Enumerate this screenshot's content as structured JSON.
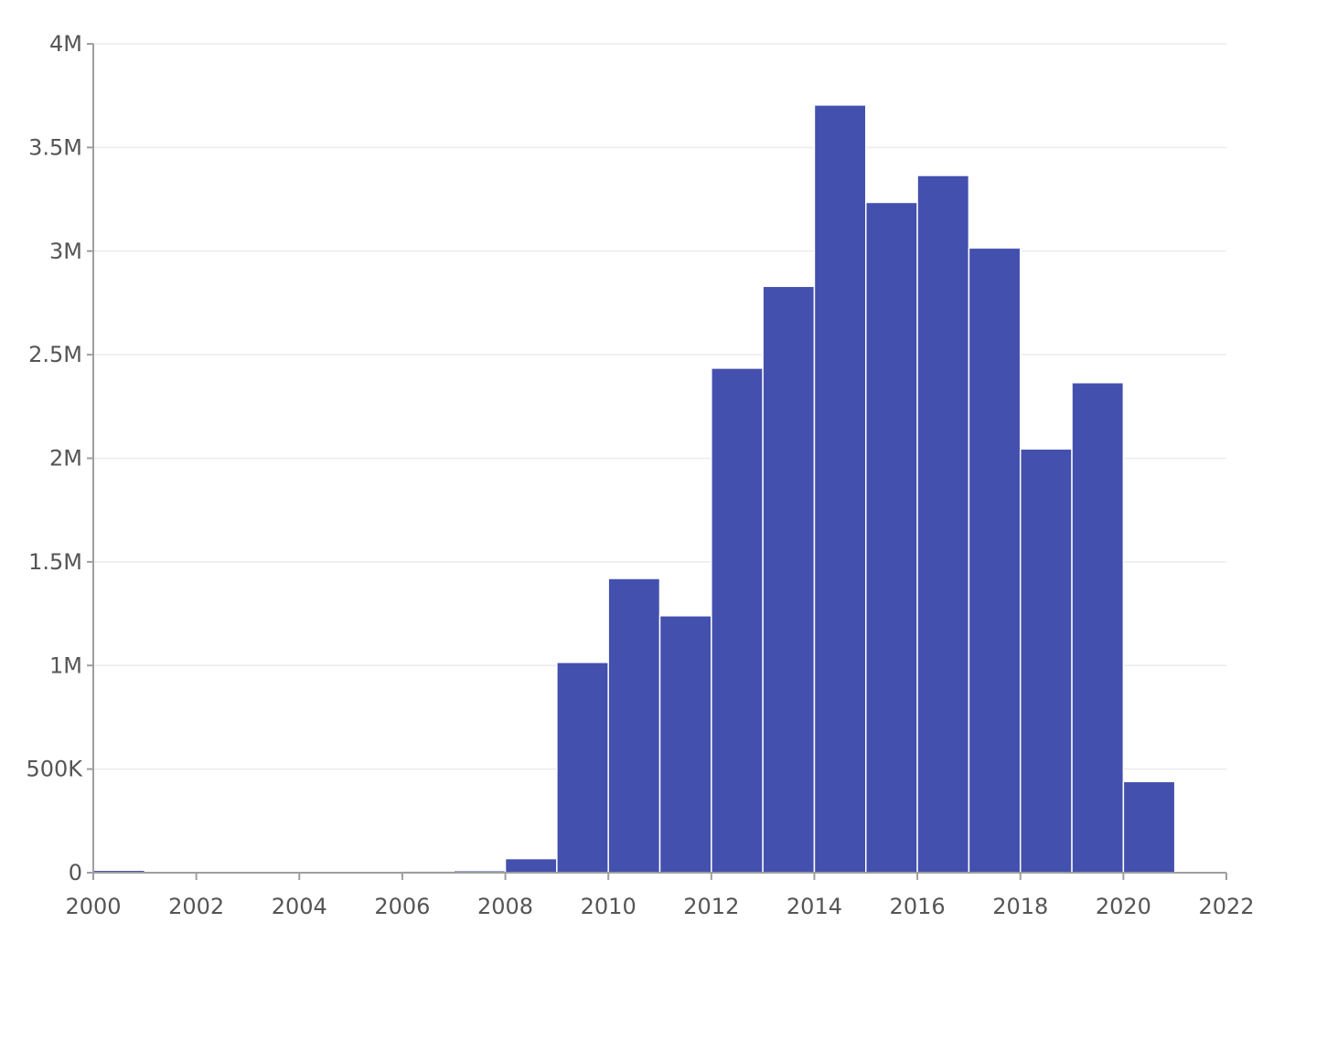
{
  "chart_data": {
    "type": "bar",
    "title": "",
    "xlabel": "",
    "ylabel": "",
    "bin_width": 1,
    "bins": [
      {
        "x0": 2000,
        "x1": 2001,
        "value": 12000
      },
      {
        "x0": 2001,
        "x1": 2002,
        "value": 1000
      },
      {
        "x0": 2002,
        "x1": 2003,
        "value": 1000
      },
      {
        "x0": 2003,
        "x1": 2004,
        "value": 1000
      },
      {
        "x0": 2004,
        "x1": 2005,
        "value": 1000
      },
      {
        "x0": 2005,
        "x1": 2006,
        "value": 2000
      },
      {
        "x0": 2006,
        "x1": 2007,
        "value": 8000
      },
      {
        "x0": 2007,
        "x1": 2008,
        "value": 10000
      },
      {
        "x0": 2008,
        "x1": 2009,
        "value": 68000
      },
      {
        "x0": 2009,
        "x1": 2010,
        "value": 1015000
      },
      {
        "x0": 2010,
        "x1": 2011,
        "value": 1420000
      },
      {
        "x0": 2011,
        "x1": 2012,
        "value": 1240000
      },
      {
        "x0": 2012,
        "x1": 2013,
        "value": 2435000
      },
      {
        "x0": 2013,
        "x1": 2014,
        "value": 2830000
      },
      {
        "x0": 2014,
        "x1": 2015,
        "value": 3705000
      },
      {
        "x0": 2015,
        "x1": 2016,
        "value": 3235000
      },
      {
        "x0": 2016,
        "x1": 2017,
        "value": 3365000
      },
      {
        "x0": 2017,
        "x1": 2018,
        "value": 3015000
      },
      {
        "x0": 2018,
        "x1": 2019,
        "value": 2045000
      },
      {
        "x0": 2019,
        "x1": 2020,
        "value": 2365000
      },
      {
        "x0": 2020,
        "x1": 2021,
        "value": 440000
      }
    ],
    "xlim": [
      2000,
      2022
    ],
    "ylim": [
      0,
      4000000
    ],
    "x_ticks": [
      {
        "value": 2000,
        "label": "2000"
      },
      {
        "value": 2002,
        "label": "2002"
      },
      {
        "value": 2004,
        "label": "2004"
      },
      {
        "value": 2006,
        "label": "2006"
      },
      {
        "value": 2008,
        "label": "2008"
      },
      {
        "value": 2010,
        "label": "2010"
      },
      {
        "value": 2012,
        "label": "2012"
      },
      {
        "value": 2014,
        "label": "2014"
      },
      {
        "value": 2016,
        "label": "2016"
      },
      {
        "value": 2018,
        "label": "2018"
      },
      {
        "value": 2020,
        "label": "2020"
      },
      {
        "value": 2022,
        "label": "2022"
      }
    ],
    "y_ticks": [
      {
        "value": 0,
        "label": "0"
      },
      {
        "value": 500000,
        "label": "500K"
      },
      {
        "value": 1000000,
        "label": "1M"
      },
      {
        "value": 1500000,
        "label": "1.5M"
      },
      {
        "value": 2000000,
        "label": "2M"
      },
      {
        "value": 2500000,
        "label": "2.5M"
      },
      {
        "value": 3000000,
        "label": "3M"
      },
      {
        "value": 3500000,
        "label": "3.5M"
      },
      {
        "value": 4000000,
        "label": "4M"
      }
    ],
    "grid": true,
    "legend": "none",
    "bar_color": "#4350ae"
  }
}
